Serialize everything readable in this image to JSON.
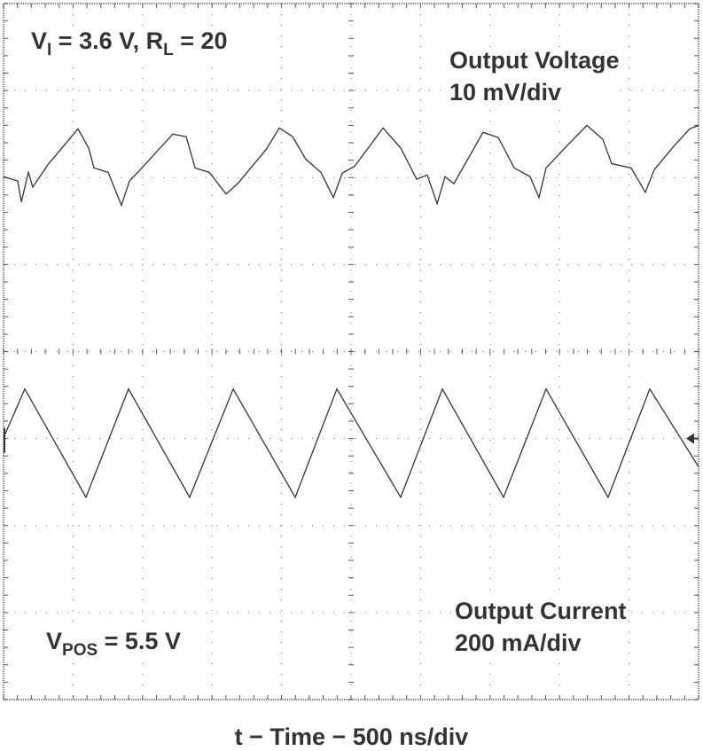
{
  "chart_data": {
    "type": "line",
    "title": "",
    "xlabel": "t − Time − 500 ns/div",
    "x_unit": "ns",
    "xlim": [
      0,
      5000
    ],
    "x_divisions": 10,
    "y_divisions": 8,
    "grid": true,
    "trace_color": "#333333",
    "annotations": {
      "conditions_prefix": "V",
      "conditions_sub1": "I",
      "conditions_mid": " = 3.6 V, R",
      "conditions_sub2": "L",
      "conditions_suffix": " = 20",
      "vpos_prefix": "V",
      "vpos_sub": "POS",
      "vpos_suffix": " = 5.5 V"
    },
    "series": [
      {
        "name": "Output Voltage",
        "scale": "10 mV/div",
        "unit": "mV",
        "mV_per_div": 10,
        "x": [
          0,
          102,
          128,
          179,
          210,
          325,
          536,
          612,
          651,
          753,
          848,
          906,
          995,
          1218,
          1314,
          1378,
          1480,
          1601,
          1684,
          1888,
          1984,
          2079,
          2175,
          2283,
          2373,
          2436,
          2526,
          2730,
          2857,
          2972,
          3048,
          3119,
          3176,
          3240,
          3450,
          3559,
          3674,
          3788,
          3852,
          3903,
          4056,
          4197,
          4311,
          4375,
          4515,
          4617,
          4681,
          4822,
          4936,
          5000
        ],
        "values": [
          20.1,
          19.6,
          17.2,
          20.6,
          18.9,
          21.6,
          25.6,
          23.4,
          21.1,
          20.6,
          16.8,
          19.6,
          21.1,
          25.0,
          24.7,
          21.1,
          20.6,
          18.1,
          19.3,
          23.2,
          25.7,
          24.7,
          22.1,
          20.6,
          17.7,
          20.5,
          21.3,
          25.7,
          23.4,
          19.8,
          20.3,
          17.0,
          20.1,
          19.3,
          25.2,
          24.6,
          21.1,
          20.1,
          17.7,
          21.1,
          23.7,
          26.0,
          24.4,
          21.6,
          21.1,
          18.3,
          20.9,
          23.6,
          25.6,
          26.0
        ]
      },
      {
        "name": "Output Current",
        "scale": "200 mA/div",
        "unit": "mA",
        "mA_per_div": 200,
        "x": [
          0,
          153,
          593,
          899,
          1339,
          1652,
          2098,
          2398,
          2857,
          3157,
          3597,
          3903,
          4349,
          4649,
          5000
        ],
        "values": [
          2,
          114,
          -135,
          114,
          -135,
          114,
          -135,
          114,
          -135,
          114,
          -135,
          114,
          -135,
          114,
          -65
        ]
      }
    ]
  }
}
